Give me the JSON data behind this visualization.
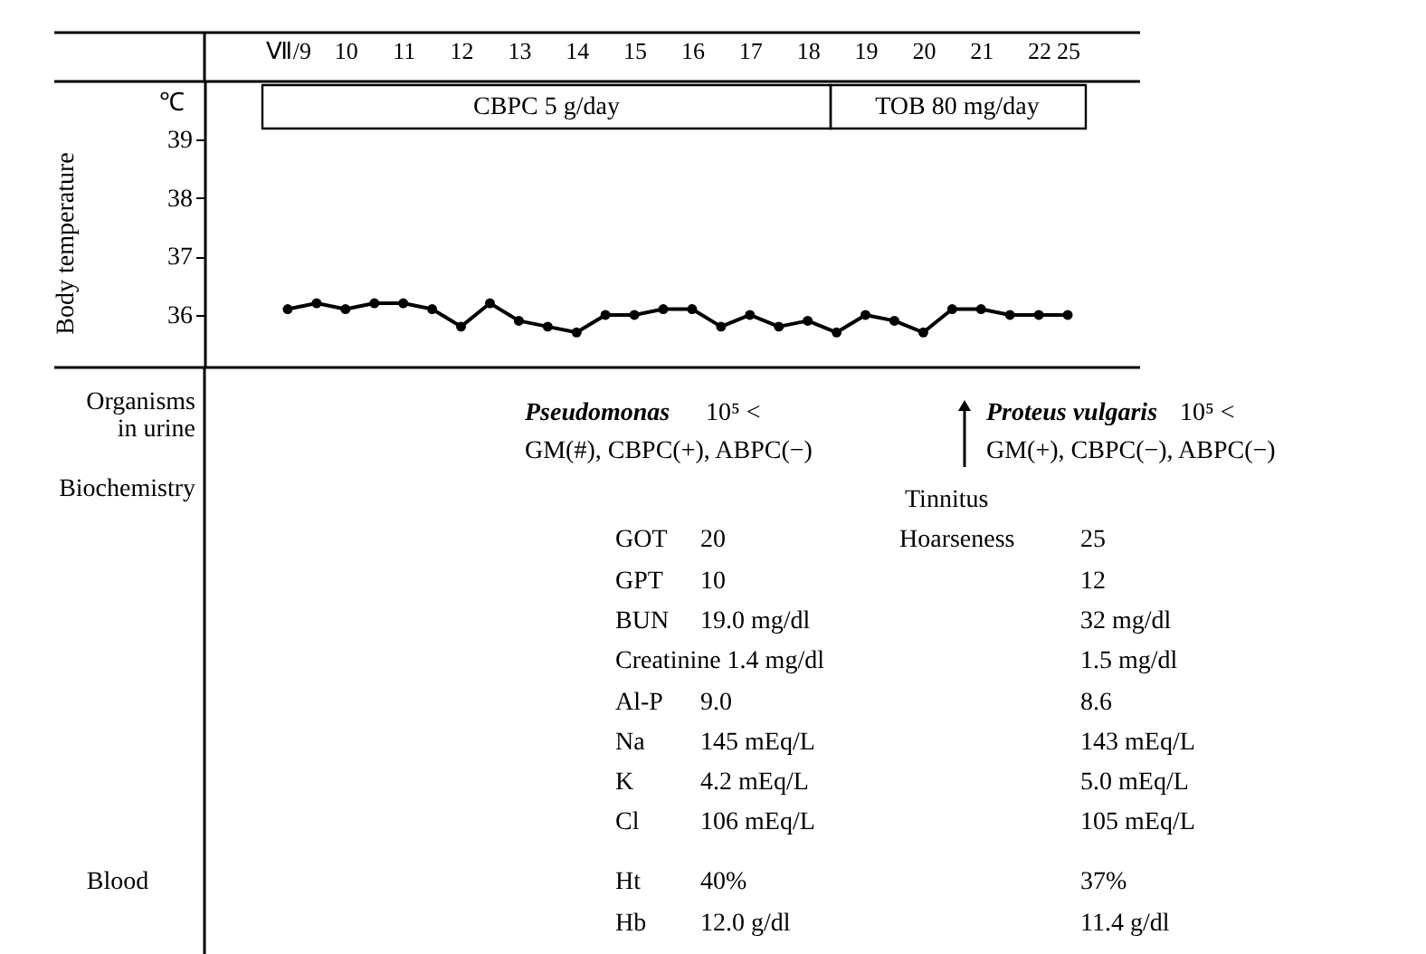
{
  "chart_data": {
    "type": "line",
    "ylabel": "Body temperature",
    "categories": [
      "Ⅶ/9",
      null,
      "10",
      null,
      "11",
      null,
      "12",
      null,
      "13",
      null,
      "14",
      null,
      "15",
      null,
      "16",
      null,
      "17",
      null,
      "18",
      null,
      "19",
      null,
      "20",
      null,
      "21",
      null,
      "22",
      "25"
    ],
    "series": [
      {
        "color": "#000000",
        "values": [
          36.1,
          36.2,
          36.1,
          36.2,
          36.2,
          36.1,
          35.8,
          36.2,
          35.9,
          35.8,
          35.7,
          36.0,
          36.0,
          36.1,
          36.1,
          35.8,
          36.0,
          35.8,
          35.9,
          35.7,
          36.0,
          35.9,
          35.7,
          36.1,
          36.1,
          36.0,
          36.0,
          36.0
        ]
      }
    ],
    "ylim": [
      35.1,
      40.0
    ],
    "yticks": [
      36,
      37,
      38,
      39
    ],
    "marker": "circle",
    "line_style": "solid",
    "grid": false,
    "annotations": [
      "℃",
      "CBPC 5 g/day",
      "TOB 80 mg/day",
      "Organisms\nin urine",
      "Biochemistry",
      "Blood",
      "Pseudomonas",
      "10⁵ <",
      "GM(#), CBPC(+), ABPC(−)",
      "Proteus vulgaris",
      "10⁵ <",
      "GM(+), CBPC(−), ABPC(−)",
      "Tinnitus",
      "Hoarseness",
      "GOT",
      "20",
      "25",
      "GPT",
      "10",
      "12",
      "BUN",
      "19.0 mg/dl",
      "32 mg/dl",
      "Creatinine  1.4 mg/dl",
      "1.5 mg/dl",
      "Al-P",
      "9.0",
      "8.6",
      "Na",
      "145 mEq/L",
      "143 mEq/L",
      "K",
      "4.2 mEq/L",
      "5.0 mEq/L",
      "Cl",
      "106 mEq/L",
      "105 mEq/L",
      "Ht",
      "40%",
      "37%",
      "Hb",
      "12.0 g/dl",
      "11.4 g/dl"
    ]
  }
}
